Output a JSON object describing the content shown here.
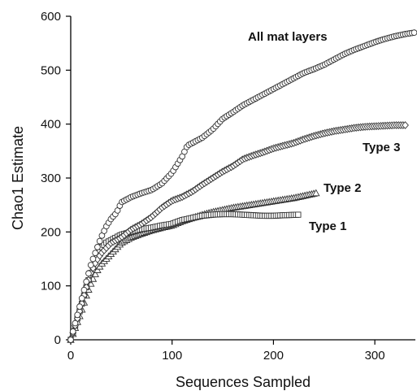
{
  "chart_data": {
    "type": "scatter",
    "title": "",
    "xlabel": "Sequences Sampled",
    "ylabel": "Chao1 Estimate",
    "xlim": [
      0,
      340
    ],
    "ylim": [
      0,
      600
    ],
    "xticks": [
      "0",
      "100",
      "200",
      "300"
    ],
    "yticks": [
      "0",
      "100",
      "200",
      "300",
      "400",
      "500",
      "600"
    ],
    "grid": false,
    "legend": "inline labels next to each curve",
    "series": [
      {
        "name": "All mat layers",
        "marker": "circle",
        "end_x": 340,
        "points": [
          [
            0,
            0
          ],
          [
            5,
            35
          ],
          [
            10,
            70
          ],
          [
            15,
            105
          ],
          [
            20,
            140
          ],
          [
            25,
            165
          ],
          [
            30,
            190
          ],
          [
            35,
            210
          ],
          [
            40,
            225
          ],
          [
            45,
            235
          ],
          [
            50,
            255
          ],
          [
            60,
            265
          ],
          [
            70,
            272
          ],
          [
            80,
            278
          ],
          [
            90,
            290
          ],
          [
            100,
            310
          ],
          [
            110,
            340
          ],
          [
            115,
            360
          ],
          [
            120,
            365
          ],
          [
            130,
            375
          ],
          [
            140,
            390
          ],
          [
            150,
            410
          ],
          [
            160,
            422
          ],
          [
            170,
            435
          ],
          [
            180,
            445
          ],
          [
            190,
            455
          ],
          [
            200,
            465
          ],
          [
            210,
            475
          ],
          [
            220,
            485
          ],
          [
            230,
            495
          ],
          [
            240,
            502
          ],
          [
            250,
            510
          ],
          [
            260,
            520
          ],
          [
            270,
            530
          ],
          [
            280,
            538
          ],
          [
            290,
            545
          ],
          [
            300,
            552
          ],
          [
            310,
            558
          ],
          [
            320,
            563
          ],
          [
            330,
            567
          ],
          [
            340,
            570
          ]
        ]
      },
      {
        "name": "Type 3",
        "marker": "diamond",
        "end_x": 330,
        "points": [
          [
            0,
            0
          ],
          [
            5,
            30
          ],
          [
            10,
            60
          ],
          [
            15,
            95
          ],
          [
            20,
            125
          ],
          [
            25,
            145
          ],
          [
            30,
            160
          ],
          [
            35,
            170
          ],
          [
            40,
            180
          ],
          [
            50,
            190
          ],
          [
            60,
            205
          ],
          [
            70,
            215
          ],
          [
            80,
            228
          ],
          [
            90,
            245
          ],
          [
            100,
            258
          ],
          [
            110,
            265
          ],
          [
            120,
            275
          ],
          [
            130,
            288
          ],
          [
            140,
            300
          ],
          [
            150,
            312
          ],
          [
            160,
            322
          ],
          [
            170,
            335
          ],
          [
            180,
            342
          ],
          [
            190,
            348
          ],
          [
            200,
            355
          ],
          [
            210,
            360
          ],
          [
            220,
            365
          ],
          [
            230,
            372
          ],
          [
            240,
            378
          ],
          [
            250,
            383
          ],
          [
            260,
            387
          ],
          [
            270,
            390
          ],
          [
            280,
            393
          ],
          [
            290,
            395
          ],
          [
            300,
            396
          ],
          [
            310,
            397
          ],
          [
            320,
            398
          ],
          [
            330,
            398
          ]
        ]
      },
      {
        "name": "Type 2",
        "marker": "triangle",
        "end_x": 242,
        "points": [
          [
            0,
            0
          ],
          [
            5,
            25
          ],
          [
            10,
            50
          ],
          [
            15,
            80
          ],
          [
            20,
            105
          ],
          [
            25,
            125
          ],
          [
            30,
            140
          ],
          [
            35,
            150
          ],
          [
            40,
            160
          ],
          [
            45,
            170
          ],
          [
            50,
            180
          ],
          [
            60,
            190
          ],
          [
            70,
            197
          ],
          [
            80,
            203
          ],
          [
            90,
            208
          ],
          [
            100,
            212
          ],
          [
            110,
            220
          ],
          [
            120,
            226
          ],
          [
            130,
            232
          ],
          [
            140,
            237
          ],
          [
            150,
            241
          ],
          [
            160,
            245
          ],
          [
            170,
            248
          ],
          [
            180,
            251
          ],
          [
            190,
            254
          ],
          [
            200,
            257
          ],
          [
            210,
            260
          ],
          [
            220,
            263
          ],
          [
            230,
            267
          ],
          [
            242,
            272
          ]
        ]
      },
      {
        "name": "Type 1",
        "marker": "square",
        "end_x": 225,
        "points": [
          [
            0,
            0
          ],
          [
            5,
            30
          ],
          [
            10,
            60
          ],
          [
            15,
            95
          ],
          [
            20,
            125
          ],
          [
            25,
            150
          ],
          [
            30,
            170
          ],
          [
            35,
            180
          ],
          [
            40,
            185
          ],
          [
            50,
            195
          ],
          [
            60,
            200
          ],
          [
            70,
            205
          ],
          [
            80,
            208
          ],
          [
            90,
            212
          ],
          [
            100,
            215
          ],
          [
            110,
            222
          ],
          [
            120,
            226
          ],
          [
            130,
            230
          ],
          [
            140,
            232
          ],
          [
            150,
            233
          ],
          [
            160,
            233
          ],
          [
            170,
            232
          ],
          [
            180,
            231
          ],
          [
            190,
            230
          ],
          [
            200,
            230
          ],
          [
            210,
            231
          ],
          [
            225,
            232
          ]
        ]
      }
    ]
  }
}
